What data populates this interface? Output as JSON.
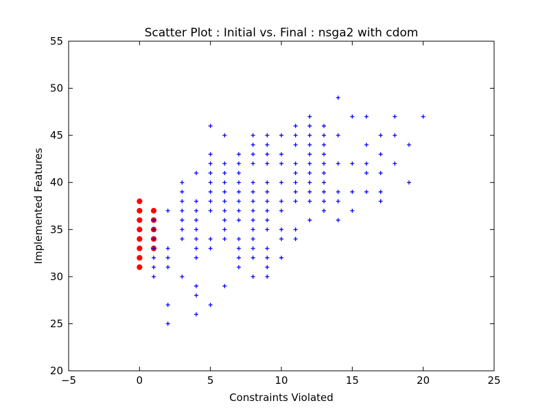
{
  "chart_data": {
    "type": "scatter",
    "title": "Scatter Plot : Initial vs. Final : nsga2 with cdom",
    "xlabel": "Constraints Violated",
    "ylabel": "Implemented Features",
    "xlim": [
      -5,
      25
    ],
    "ylim": [
      20,
      55
    ],
    "xticks": [
      -5,
      0,
      5,
      10,
      15,
      20,
      25
    ],
    "yticks": [
      20,
      25,
      30,
      35,
      40,
      45,
      50,
      55
    ],
    "xtick_labels": [
      "−5",
      "0",
      "5",
      "10",
      "15",
      "20",
      "25"
    ],
    "ytick_labels": [
      "20",
      "25",
      "30",
      "35",
      "40",
      "45",
      "50",
      "55"
    ],
    "grid": false,
    "legend": false,
    "series": [
      {
        "marker": "circle",
        "color": "#ff0000",
        "points": [
          [
            0,
            31
          ],
          [
            0,
            32
          ],
          [
            0,
            33
          ],
          [
            0,
            34
          ],
          [
            0,
            35
          ],
          [
            0,
            36
          ],
          [
            0,
            37
          ],
          [
            0,
            38
          ],
          [
            1,
            33
          ],
          [
            1,
            34
          ],
          [
            1,
            35
          ],
          [
            1,
            36
          ],
          [
            1,
            37
          ]
        ]
      },
      {
        "marker": "plus",
        "color": "#0000ff",
        "points": [
          [
            1,
            30
          ],
          [
            1,
            31
          ],
          [
            1,
            32
          ],
          [
            1,
            33
          ],
          [
            1,
            34
          ],
          [
            1,
            35
          ],
          [
            1,
            36
          ],
          [
            2,
            25
          ],
          [
            2,
            27
          ],
          [
            2,
            31
          ],
          [
            2,
            32
          ],
          [
            2,
            33
          ],
          [
            2,
            37
          ],
          [
            3,
            30
          ],
          [
            3,
            34
          ],
          [
            3,
            35
          ],
          [
            3,
            36
          ],
          [
            3,
            37
          ],
          [
            3,
            38
          ],
          [
            3,
            39
          ],
          [
            3,
            40
          ],
          [
            4,
            26
          ],
          [
            4,
            28
          ],
          [
            4,
            29
          ],
          [
            4,
            32
          ],
          [
            4,
            33
          ],
          [
            4,
            34
          ],
          [
            4,
            35
          ],
          [
            4,
            36
          ],
          [
            4,
            37
          ],
          [
            4,
            38
          ],
          [
            4,
            41
          ],
          [
            5,
            27
          ],
          [
            5,
            33
          ],
          [
            5,
            34
          ],
          [
            5,
            37
          ],
          [
            5,
            38
          ],
          [
            5,
            39
          ],
          [
            5,
            40
          ],
          [
            5,
            41
          ],
          [
            5,
            42
          ],
          [
            5,
            43
          ],
          [
            5,
            46
          ],
          [
            6,
            29
          ],
          [
            6,
            34
          ],
          [
            6,
            35
          ],
          [
            6,
            36
          ],
          [
            6,
            37
          ],
          [
            6,
            38
          ],
          [
            6,
            39
          ],
          [
            6,
            40
          ],
          [
            6,
            41
          ],
          [
            6,
            42
          ],
          [
            6,
            45
          ],
          [
            7,
            31
          ],
          [
            7,
            32
          ],
          [
            7,
            33
          ],
          [
            7,
            34
          ],
          [
            7,
            36
          ],
          [
            7,
            37
          ],
          [
            7,
            38
          ],
          [
            7,
            39
          ],
          [
            7,
            40
          ],
          [
            7,
            41
          ],
          [
            7,
            42
          ],
          [
            7,
            43
          ],
          [
            8,
            30
          ],
          [
            8,
            32
          ],
          [
            8,
            33
          ],
          [
            8,
            34
          ],
          [
            8,
            35
          ],
          [
            8,
            36
          ],
          [
            8,
            37
          ],
          [
            8,
            38
          ],
          [
            8,
            39
          ],
          [
            8,
            40
          ],
          [
            8,
            42
          ],
          [
            8,
            43
          ],
          [
            8,
            44
          ],
          [
            8,
            45
          ],
          [
            9,
            30
          ],
          [
            9,
            31
          ],
          [
            9,
            32
          ],
          [
            9,
            33
          ],
          [
            9,
            35
          ],
          [
            9,
            36
          ],
          [
            9,
            37
          ],
          [
            9,
            38
          ],
          [
            9,
            39
          ],
          [
            9,
            40
          ],
          [
            9,
            42
          ],
          [
            9,
            43
          ],
          [
            9,
            44
          ],
          [
            9,
            45
          ],
          [
            10,
            32
          ],
          [
            10,
            34
          ],
          [
            10,
            35
          ],
          [
            10,
            37
          ],
          [
            10,
            38
          ],
          [
            10,
            40
          ],
          [
            10,
            42
          ],
          [
            10,
            43
          ],
          [
            10,
            45
          ],
          [
            11,
            34
          ],
          [
            11,
            35
          ],
          [
            11,
            38
          ],
          [
            11,
            39
          ],
          [
            11,
            40
          ],
          [
            11,
            41
          ],
          [
            11,
            42
          ],
          [
            11,
            44
          ],
          [
            11,
            45
          ],
          [
            11,
            46
          ],
          [
            12,
            36
          ],
          [
            12,
            38
          ],
          [
            12,
            39
          ],
          [
            12,
            40
          ],
          [
            12,
            41
          ],
          [
            12,
            42
          ],
          [
            12,
            43
          ],
          [
            12,
            44
          ],
          [
            12,
            45
          ],
          [
            12,
            46
          ],
          [
            12,
            47
          ],
          [
            13,
            37
          ],
          [
            13,
            38
          ],
          [
            13,
            39
          ],
          [
            13,
            40
          ],
          [
            13,
            41
          ],
          [
            13,
            42
          ],
          [
            13,
            43
          ],
          [
            13,
            44
          ],
          [
            13,
            45
          ],
          [
            13,
            46
          ],
          [
            14,
            36
          ],
          [
            14,
            38
          ],
          [
            14,
            39
          ],
          [
            14,
            42
          ],
          [
            14,
            45
          ],
          [
            14,
            49
          ],
          [
            15,
            37
          ],
          [
            15,
            39
          ],
          [
            15,
            42
          ],
          [
            15,
            47
          ],
          [
            16,
            39
          ],
          [
            16,
            41
          ],
          [
            16,
            42
          ],
          [
            16,
            44
          ],
          [
            16,
            47
          ],
          [
            17,
            38
          ],
          [
            17,
            39
          ],
          [
            17,
            41
          ],
          [
            17,
            43
          ],
          [
            17,
            45
          ],
          [
            18,
            42
          ],
          [
            18,
            45
          ],
          [
            18,
            47
          ],
          [
            19,
            40
          ],
          [
            19,
            44
          ],
          [
            20,
            47
          ]
        ]
      }
    ]
  }
}
